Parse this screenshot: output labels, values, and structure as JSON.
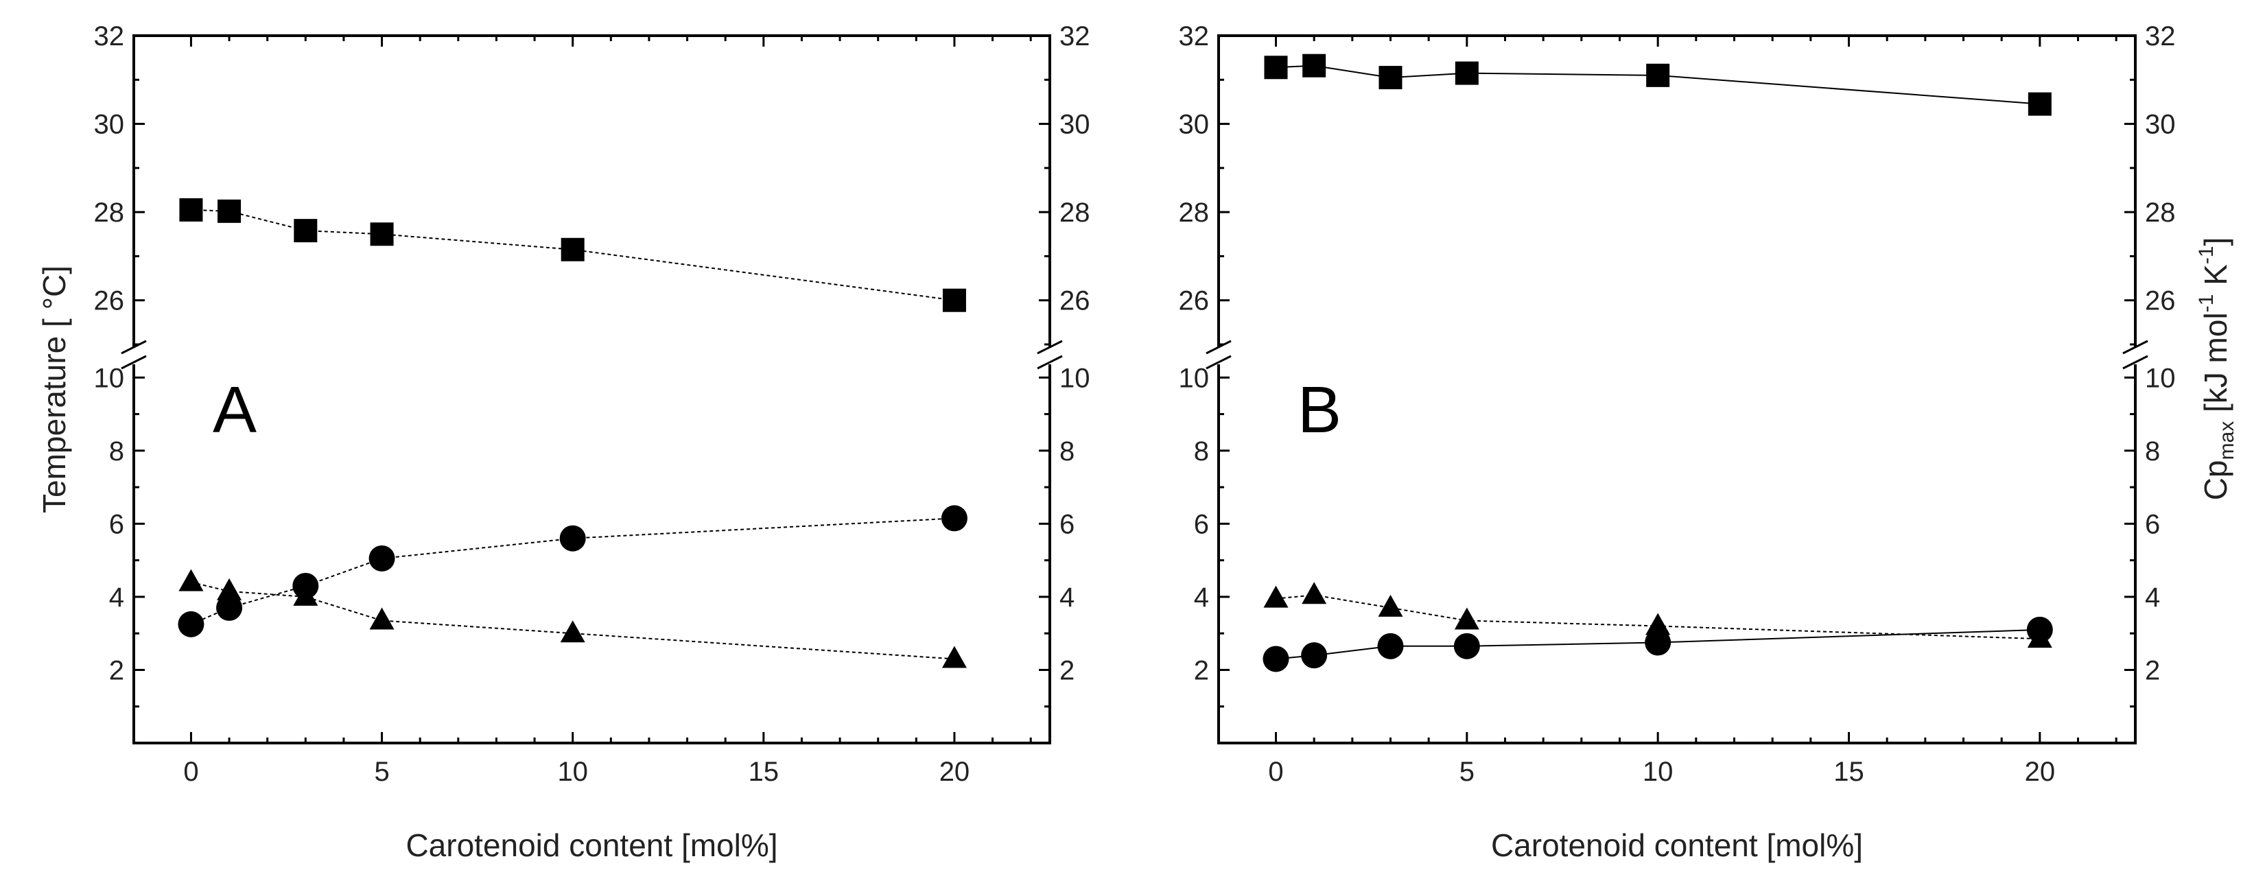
{
  "chart_data": [
    {
      "type": "scatter",
      "panel_label": "A",
      "xlabel": "Carotenoid content [mol%]",
      "ylabel": "Temperature [ °C]",
      "ylabel_right": "",
      "xlim": [
        -1.5,
        22.5
      ],
      "xticks": [
        "0",
        "5",
        "10",
        "15",
        "20"
      ],
      "y_break": {
        "lower_range": [
          0,
          10.4
        ],
        "upper_range": [
          25,
          32
        ]
      },
      "yticks_lower": [
        "2",
        "4",
        "6",
        "8",
        "10"
      ],
      "yticks_upper": [
        "26",
        "28",
        "30",
        "32"
      ],
      "series": [
        {
          "name": "squares",
          "marker": "square",
          "line": "dashed",
          "x": [
            0,
            1,
            3,
            5,
            10,
            20
          ],
          "y": [
            28.05,
            28.02,
            27.58,
            27.5,
            27.15,
            26.0
          ]
        },
        {
          "name": "circles",
          "marker": "circle",
          "line": "dashed",
          "x": [
            0,
            1,
            3,
            5,
            10,
            20
          ],
          "y": [
            3.25,
            3.7,
            4.3,
            5.05,
            5.6,
            6.15
          ]
        },
        {
          "name": "triangles",
          "marker": "triangle",
          "line": "dashed",
          "x": [
            0,
            1,
            3,
            5,
            10,
            20
          ],
          "y": [
            4.4,
            4.15,
            4.0,
            3.35,
            3.0,
            2.3
          ]
        }
      ]
    },
    {
      "type": "scatter",
      "panel_label": "B",
      "xlabel": "Carotenoid content [mol%]",
      "ylabel": "",
      "ylabel_right": {
        "main": "Cp",
        "sub": "max",
        "rest1": " [kJ mol",
        "sup1": "-1",
        "rest2": " K",
        "sup2": "-1",
        "rest3": "]"
      },
      "xlim": [
        -1.5,
        22.5
      ],
      "xticks": [
        "0",
        "5",
        "10",
        "15",
        "20"
      ],
      "y_break": {
        "lower_range": [
          0,
          10.4
        ],
        "upper_range": [
          25,
          32
        ]
      },
      "yticks_lower": [
        "2",
        "4",
        "6",
        "8",
        "10"
      ],
      "yticks_upper": [
        "26",
        "28",
        "30",
        "32"
      ],
      "series": [
        {
          "name": "squares",
          "marker": "square",
          "line": "solid",
          "x": [
            0,
            1,
            3,
            5,
            10,
            20
          ],
          "y": [
            31.28,
            31.32,
            31.05,
            31.15,
            31.1,
            30.45
          ]
        },
        {
          "name": "circles",
          "marker": "circle",
          "line": "solid",
          "x": [
            0,
            1,
            3,
            5,
            10,
            20
          ],
          "y": [
            2.3,
            2.4,
            2.65,
            2.65,
            2.75,
            3.1
          ]
        },
        {
          "name": "triangles",
          "marker": "triangle",
          "line": "dashed",
          "x": [
            0,
            1,
            3,
            5,
            10,
            20
          ],
          "y": [
            3.95,
            4.05,
            3.7,
            3.35,
            3.2,
            2.85
          ]
        }
      ]
    }
  ]
}
